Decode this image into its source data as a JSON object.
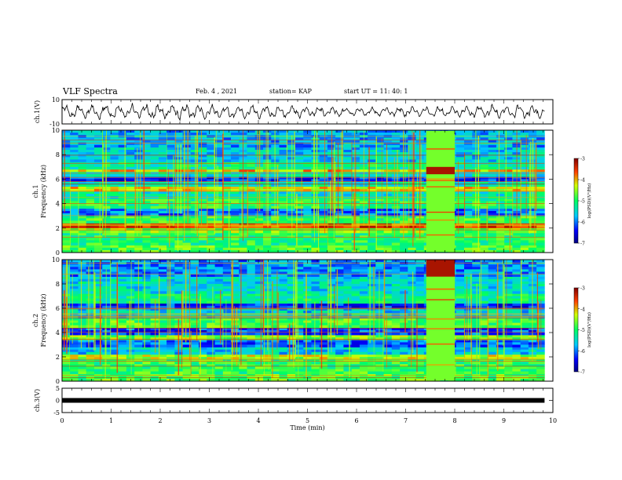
{
  "header": {
    "title": "VLF Spectra",
    "date": "Feb. 4 , 2021",
    "station": "station= KAP",
    "start": "start UT = 11: 40: 1"
  },
  "chart_data": [
    {
      "type": "line",
      "ylabel": "ch.1(V)",
      "ylim": [
        -10,
        10
      ],
      "yticks": [
        "10",
        "-10"
      ],
      "xlim": [
        0,
        10
      ],
      "x_end": 9.83,
      "color": "#000000",
      "description_values": "continuous waveform oscillating roughly between -8 and 8 V",
      "amplitude_profile": [
        {
          "x": 0.0,
          "amp": 6
        },
        {
          "x": 2.0,
          "amp": 7
        },
        {
          "x": 4.0,
          "amp": 6
        },
        {
          "x": 6.0,
          "amp": 4
        },
        {
          "x": 8.0,
          "amp": 5
        },
        {
          "x": 9.83,
          "amp": 7
        }
      ]
    },
    {
      "type": "heatmap",
      "channel": "ch.1",
      "ylabel": "ch.1 Frequency (kHz)",
      "ylim": [
        0,
        10
      ],
      "yticks": [
        "0",
        "2",
        "4",
        "6",
        "8",
        "10"
      ],
      "xlim": [
        0,
        10
      ],
      "x_end": 9.83,
      "colorbar": {
        "label": "log(PSD)(V²/Hz)",
        "min": -7,
        "max": -3,
        "ticks": [
          "-3",
          "-4",
          "-5",
          "-6",
          "-7"
        ]
      },
      "base_level": -5.2,
      "bands": [
        {
          "f": [
            0.0,
            0.6
          ],
          "level": -4.8
        },
        {
          "f": [
            0.6,
            1.6
          ],
          "level": -5.0
        },
        {
          "f": [
            1.6,
            2.0
          ],
          "level": -4.6
        },
        {
          "f": [
            2.0,
            2.4
          ],
          "level": -3.6
        },
        {
          "f": [
            2.4,
            3.0
          ],
          "level": -4.9
        },
        {
          "f": [
            3.0,
            3.6
          ],
          "level": -6.0
        },
        {
          "f": [
            3.6,
            4.4
          ],
          "level": -5.0
        },
        {
          "f": [
            4.4,
            5.0
          ],
          "level": -5.4
        },
        {
          "f": [
            5.0,
            5.4
          ],
          "level": -4.2
        },
        {
          "f": [
            5.4,
            5.8
          ],
          "level": -5.4
        },
        {
          "f": [
            5.8,
            6.2
          ],
          "level": -6.3
        },
        {
          "f": [
            6.2,
            6.6
          ],
          "level": -5.4
        },
        {
          "f": [
            6.6,
            6.8
          ],
          "level": -4.0
        },
        {
          "f": [
            6.8,
            7.4
          ],
          "level": -5.2
        },
        {
          "f": [
            7.4,
            8.6
          ],
          "level": -5.6
        },
        {
          "f": [
            8.6,
            10.0
          ],
          "level": -5.8
        }
      ],
      "event": {
        "t": [
          7.42,
          8.0
        ],
        "f": [
          6.4,
          7.0
        ],
        "level": -3.2,
        "fill_level": -4.6
      }
    },
    {
      "type": "heatmap",
      "channel": "ch.2",
      "ylabel": "ch.2 Frequency (kHz)",
      "ylim": [
        0,
        10
      ],
      "yticks": [
        "0",
        "2",
        "4",
        "6",
        "8",
        "10"
      ],
      "xlim": [
        0,
        10
      ],
      "x_end": 9.83,
      "colorbar": {
        "label": "log(PSD)(V²/Hz)",
        "min": -7,
        "max": -3,
        "ticks": [
          "-3",
          "-4",
          "-5",
          "-6",
          "-7"
        ]
      },
      "base_level": -5.2,
      "bands": [
        {
          "f": [
            0.0,
            0.6
          ],
          "level": -4.8
        },
        {
          "f": [
            0.6,
            1.8
          ],
          "level": -4.9
        },
        {
          "f": [
            1.8,
            2.2
          ],
          "level": -4.4
        },
        {
          "f": [
            2.2,
            2.8
          ],
          "level": -5.6
        },
        {
          "f": [
            2.8,
            3.4
          ],
          "level": -6.1
        },
        {
          "f": [
            3.4,
            3.8
          ],
          "level": -4.6
        },
        {
          "f": [
            3.8,
            4.4
          ],
          "level": -6.2
        },
        {
          "f": [
            4.4,
            5.2
          ],
          "level": -4.8
        },
        {
          "f": [
            5.2,
            6.0
          ],
          "level": -5.6
        },
        {
          "f": [
            6.0,
            6.4
          ],
          "level": -6.3
        },
        {
          "f": [
            6.4,
            7.2
          ],
          "level": -5.2
        },
        {
          "f": [
            7.2,
            8.6
          ],
          "level": -5.5
        },
        {
          "f": [
            8.6,
            10.0
          ],
          "level": -5.9
        }
      ],
      "event": {
        "t": [
          7.42,
          8.0
        ],
        "f": [
          8.6,
          10.0
        ],
        "level": -3.2,
        "fill_level": -4.6
      }
    },
    {
      "type": "line",
      "ylabel": "ch.3(V)",
      "ylim": [
        -5,
        5
      ],
      "yticks": [
        "5",
        "0",
        "-5"
      ],
      "xlim": [
        0,
        10
      ],
      "x_end": 9.83,
      "value": 0,
      "color": "#000000"
    }
  ],
  "xaxis": {
    "label": "Time (min)",
    "ticks": [
      "0",
      "1",
      "2",
      "3",
      "4",
      "5",
      "6",
      "7",
      "8",
      "9",
      "10"
    ]
  }
}
